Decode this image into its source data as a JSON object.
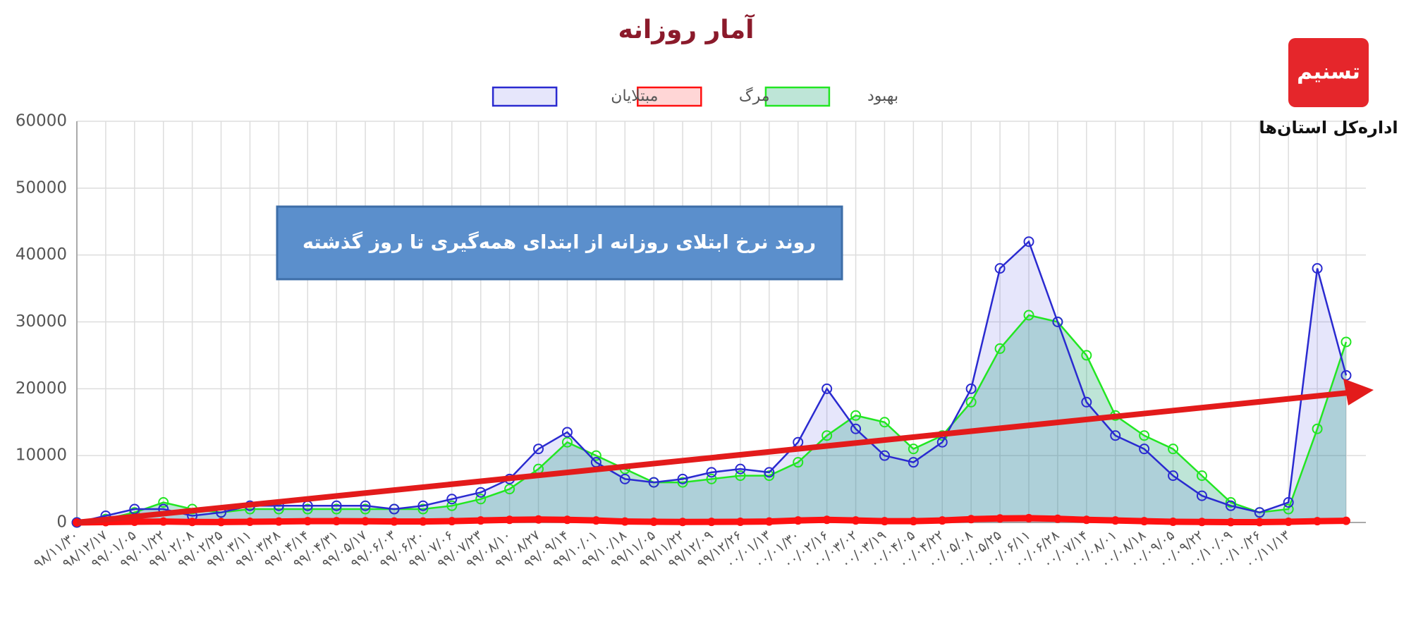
{
  "chart_data": {
    "type": "line",
    "title": "آمار روزانه",
    "annotation": "روند نرخ ابتلای روزانه از ابتدای همه‌گیری تا روز گذشته",
    "logo_text": "تسنیم",
    "source_label": "اداره‌کل استان‌ها",
    "categories": [
      "۹۸/۱۱/۳۰",
      "۹۸/۱۲/۱۷",
      "۹۹/۰۱/۰۵",
      "۹۹/۰۱/۲۲",
      "۹۹/۰۲/۰۸",
      "۹۹/۰۲/۲۵",
      "۹۹/۰۳/۱۱",
      "۹۹/۰۳/۲۸",
      "۹۹/۰۴/۱۴",
      "۹۹/۰۴/۳۱",
      "۹۹/۰۵/۱۷",
      "۹۹/۰۶/۰۳",
      "۹۹/۰۶/۲۰",
      "۹۹/۰۷/۰۶",
      "۹۹/۰۷/۲۳",
      "۹۹/۰۸/۱۰",
      "۹۹/۰۸/۲۷",
      "۹۹/۰۹/۱۴",
      "۹۹/۱۰/۰۱",
      "۹۹/۱۰/۱۸",
      "۹۹/۱۱/۰۵",
      "۹۹/۱۱/۲۲",
      "۹۹/۱۲/۰۹",
      "۹۹/۱۲/۲۶",
      "۰۰/۰۱/۱۳",
      "۰۰/۰۱/۳۰",
      "۰۰/۰۲/۱۶",
      "۰۰/۰۳/۰۲",
      "۰۰/۰۳/۱۹",
      "۰۰/۰۴/۰۵",
      "۰۰/۰۴/۲۲",
      "۰۰/۰۵/۰۸",
      "۰۰/۰۵/۲۵",
      "۰۰/۰۶/۱۱",
      "۰۰/۰۶/۲۸",
      "۰۰/۰۷/۱۴",
      "۰۰/۰۸/۰۱",
      "۰۰/۰۸/۱۸",
      "۰۰/۰۹/۰۵",
      "۰۰/۰۹/۲۲",
      "۰۰/۱۰/۰۹",
      "۰۰/۱۰/۲۶",
      "۰۰/۱۱/۱۳",
      null,
      null
    ],
    "series": [
      {
        "name": "بهبود",
        "color": "#22e622",
        "fill": "rgba(20,160,110,0.28)",
        "values": [
          0,
          500,
          1500,
          3000,
          2000,
          1500,
          2000,
          2000,
          2000,
          2000,
          2000,
          2000,
          2000,
          2500,
          3500,
          5000,
          8000,
          12000,
          10000,
          8000,
          6000,
          6000,
          6500,
          7000,
          7000,
          9000,
          13000,
          16000,
          15000,
          11000,
          13000,
          18000,
          26000,
          31000,
          30000,
          25000,
          16000,
          13000,
          11000,
          7000,
          3000,
          1500,
          2000,
          14000,
          27000
        ]
      },
      {
        "name": "مرگ",
        "color": "#ff1010",
        "fill": "rgba(255,120,120,0.3)",
        "values": [
          0,
          50,
          100,
          150,
          80,
          60,
          100,
          150,
          200,
          200,
          180,
          150,
          150,
          200,
          300,
          400,
          450,
          400,
          300,
          150,
          100,
          80,
          90,
          100,
          150,
          300,
          400,
          300,
          200,
          200,
          300,
          500,
          600,
          650,
          550,
          400,
          300,
          200,
          100,
          80,
          50,
          50,
          100,
          200,
          250
        ]
      },
      {
        "name": "مبتلایان",
        "color": "#2a2ad0",
        "fill": "rgba(90,90,230,0.15)",
        "values": [
          0,
          1000,
          2000,
          2000,
          1000,
          1500,
          2500,
          2500,
          2500,
          2500,
          2500,
          2000,
          2500,
          3500,
          4500,
          6500,
          11000,
          13500,
          9000,
          6500,
          6000,
          6500,
          7500,
          8000,
          7500,
          12000,
          20000,
          14000,
          10000,
          9000,
          12000,
          20000,
          38000,
          42000,
          30000,
          18000,
          13000,
          11000,
          7000,
          4000,
          2500,
          1500,
          3000,
          38000,
          22000
        ]
      }
    ],
    "ylim": [
      0,
      60000
    ],
    "yticks": [
      0,
      10000,
      20000,
      30000,
      40000,
      50000,
      60000
    ],
    "grid": true
  }
}
